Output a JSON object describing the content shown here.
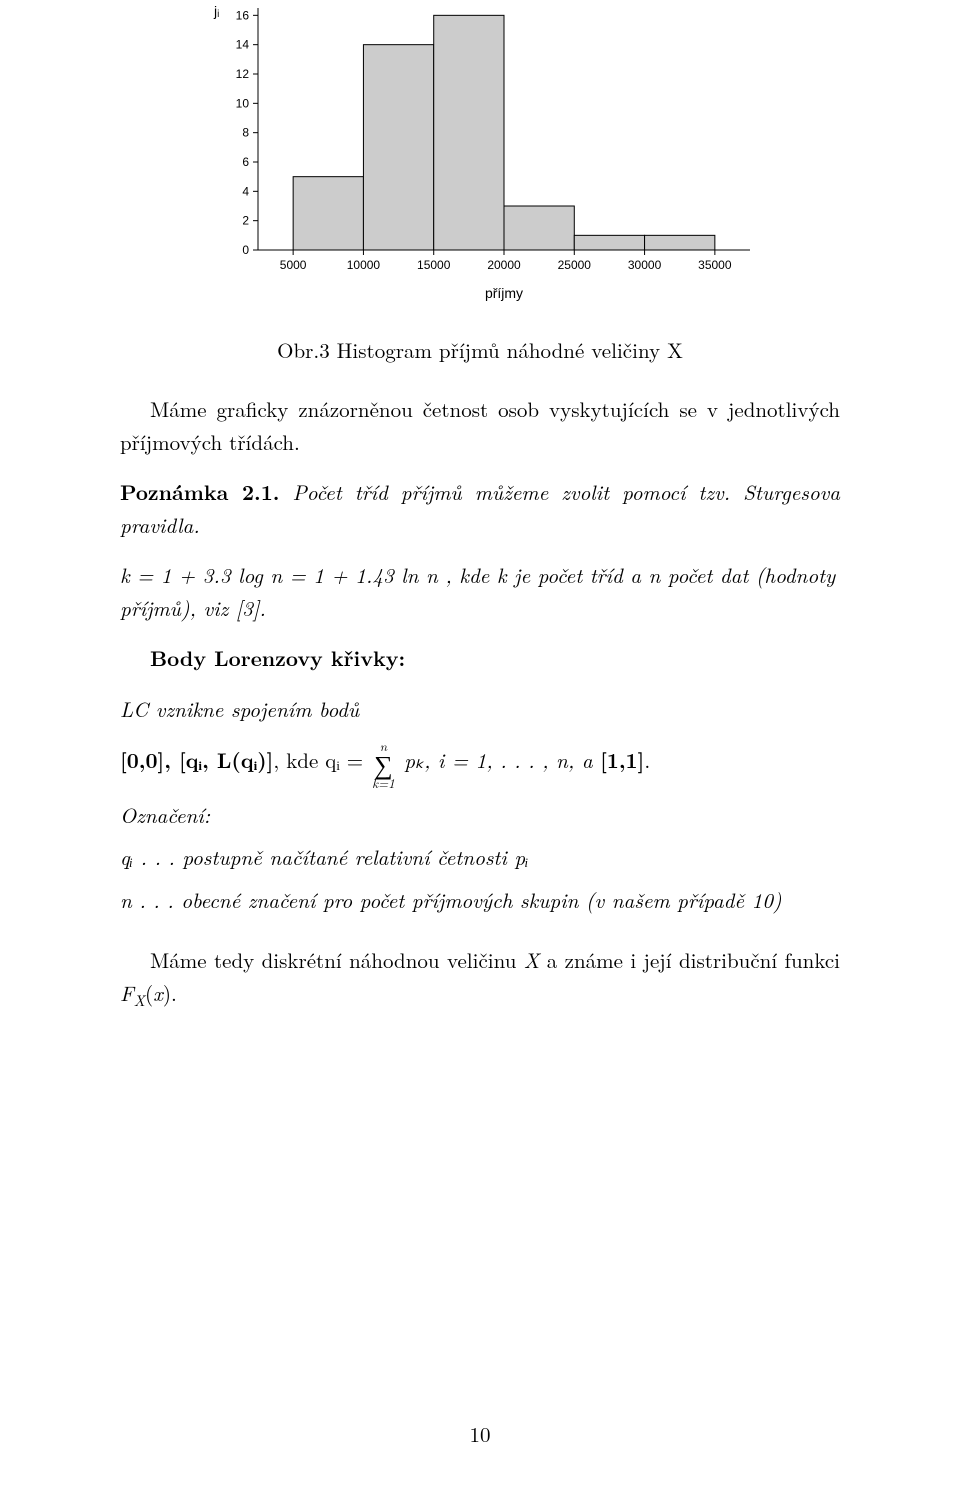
{
  "chart": {
    "type": "histogram",
    "ylabel": "jᵢ",
    "xlabel": "příjmy",
    "ylabel_fontsize": 14,
    "xlabel_fontsize": 14,
    "tick_fontsize": 12,
    "background_color": "#ffffff",
    "axis_color": "#000000",
    "bar_fill": "#cccccc",
    "bar_stroke": "#000000",
    "xlim": [
      2500,
      37500
    ],
    "ylim": [
      0,
      16.5
    ],
    "xtick_start": 5000,
    "xtick_step": 5000,
    "xtick_end": 35000,
    "ytick_start": 0,
    "ytick_step": 2,
    "ytick_end": 16,
    "bin_width": 5000,
    "bars": [
      {
        "x_left": 5000,
        "x_right": 10000,
        "height": 5
      },
      {
        "x_left": 10000,
        "x_right": 15000,
        "height": 14
      },
      {
        "x_left": 15000,
        "x_right": 20000,
        "height": 16
      },
      {
        "x_left": 20000,
        "x_right": 25000,
        "height": 3
      },
      {
        "x_left": 25000,
        "x_right": 30000,
        "height": 1
      },
      {
        "x_left": 30000,
        "x_right": 35000,
        "height": 1
      }
    ]
  },
  "caption": "Obr.3 Histogram příjmů náhodné veličiny X",
  "intro_paragraph": "Máme graficky znázorněnou četnost osob vyskytujících se v jednotlivých pří­jmových třídách.",
  "remark_label": "Poznámka 2.1.",
  "remark_text_a": " Počet tříd příjmů můžeme zvolit pomocí tzv. Sturgesova pravi­dla.",
  "remark_formula": "k = 1 + 3.3 log n = 1 + 1.43 ln n",
  "remark_text_b": " , kde k je počet tříd a n počet dat (hodnoty příjmů), viz [3].",
  "lorenz_heading": "Body Lorenzovy křivky:",
  "lorenz_line1": "LC vznikne spojením bodů",
  "lorenz_formula_prefix": "[0,0],   [qᵢ, L(qᵢ)]",
  "lorenz_formula_mid": ", kde qᵢ = ",
  "lorenz_formula_sum_top": "n",
  "lorenz_formula_sum_bottom": "k=1",
  "lorenz_formula_after_sum": " pₖ,    i = 1, . . . , n,   a ",
  "lorenz_formula_end": "[1,1]",
  "oznac_label": "Označení:",
  "oznac_q": "qᵢ . . . postupně načítané relativní četnosti pᵢ",
  "oznac_n": "n . . . obecné značení pro počet příjmových skupin (v našem případě 10)",
  "final_para": "Máme tedy diskrétní náhodnou veličinu X a známe i její distribuční funkci F_X(x).",
  "page_number": "10"
}
